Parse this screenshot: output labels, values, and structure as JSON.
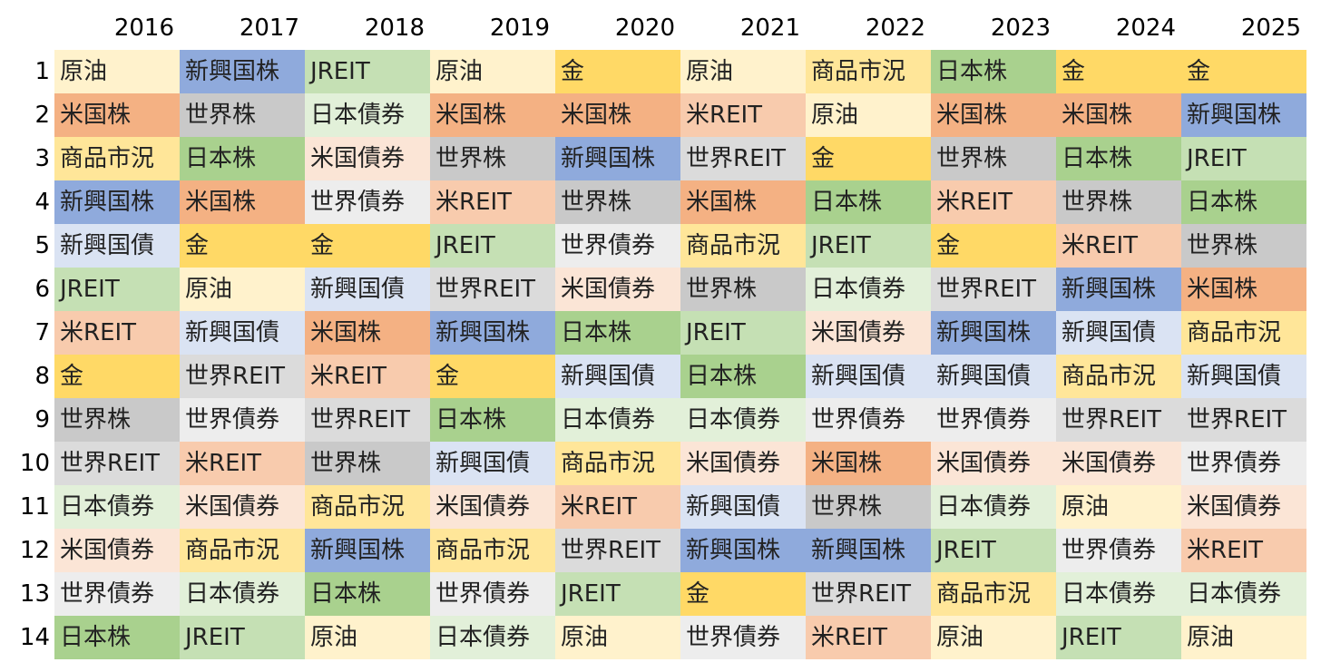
{
  "chart_data": {
    "type": "table",
    "years": [
      "2016",
      "2017",
      "2018",
      "2019",
      "2020",
      "2021",
      "2022",
      "2023",
      "2024",
      "2025"
    ],
    "ranks": [
      "1",
      "2",
      "3",
      "4",
      "5",
      "6",
      "7",
      "8",
      "9",
      "10",
      "11",
      "12",
      "13",
      "14"
    ],
    "columns": [
      [
        "原油",
        "米国株",
        "商品市況",
        "新興国株",
        "新興国債",
        "JREIT",
        "米REIT",
        "金",
        "世界株",
        "世界REIT",
        "日本債券",
        "米国債券",
        "世界債券",
        "日本株"
      ],
      [
        "新興国株",
        "世界株",
        "日本株",
        "米国株",
        "金",
        "原油",
        "新興国債",
        "世界REIT",
        "世界債券",
        "米REIT",
        "米国債券",
        "商品市況",
        "日本債券",
        "JREIT"
      ],
      [
        "JREIT",
        "日本債券",
        "米国債券",
        "世界債券",
        "金",
        "新興国債",
        "米国株",
        "米REIT",
        "世界REIT",
        "世界株",
        "商品市況",
        "新興国株",
        "日本株",
        "原油"
      ],
      [
        "原油",
        "米国株",
        "世界株",
        "米REIT",
        "JREIT",
        "世界REIT",
        "新興国株",
        "金",
        "日本株",
        "新興国債",
        "米国債券",
        "商品市況",
        "世界債券",
        "日本債券"
      ],
      [
        "金",
        "米国株",
        "新興国株",
        "世界株",
        "世界債券",
        "米国債券",
        "日本株",
        "新興国債",
        "日本債券",
        "商品市況",
        "米REIT",
        "世界REIT",
        "JREIT",
        "原油"
      ],
      [
        "原油",
        "米REIT",
        "世界REIT",
        "米国株",
        "商品市況",
        "世界株",
        "JREIT",
        "日本株",
        "日本債券",
        "米国債券",
        "新興国債",
        "新興国株",
        "金",
        "世界債券"
      ],
      [
        "商品市況",
        "原油",
        "金",
        "日本株",
        "JREIT",
        "日本債券",
        "米国債券",
        "新興国債",
        "世界債券",
        "米国株",
        "世界株",
        "新興国株",
        "世界REIT",
        "米REIT"
      ],
      [
        "日本株",
        "米国株",
        "世界株",
        "米REIT",
        "金",
        "世界REIT",
        "新興国株",
        "新興国債",
        "世界債券",
        "米国債券",
        "日本債券",
        "JREIT",
        "商品市況",
        "原油"
      ],
      [
        "金",
        "米国株",
        "日本株",
        "世界株",
        "米REIT",
        "新興国株",
        "新興国債",
        "商品市況",
        "世界REIT",
        "米国債券",
        "原油",
        "世界債券",
        "日本債券",
        "JREIT"
      ],
      [
        "金",
        "新興国株",
        "JREIT",
        "日本株",
        "世界株",
        "米国株",
        "商品市況",
        "新興国債",
        "世界REIT",
        "世界債券",
        "米国債券",
        "米REIT",
        "日本債券",
        "原油"
      ]
    ],
    "asset_colors": {
      "原油": "#fff2cc",
      "米国株": "#f4b183",
      "商品市況": "#ffe699",
      "新興国株": "#8faadc",
      "新興国債": "#dae3f3",
      "JREIT": "#c5e0b4",
      "米REIT": "#f8cbad",
      "金": "#ffd966",
      "世界株": "#c9c9c9",
      "世界REIT": "#dbdbdb",
      "日本債券": "#e2f0d9",
      "米国債券": "#fbe5d6",
      "世界債券": "#ededed",
      "日本株": "#a9d18e"
    }
  }
}
